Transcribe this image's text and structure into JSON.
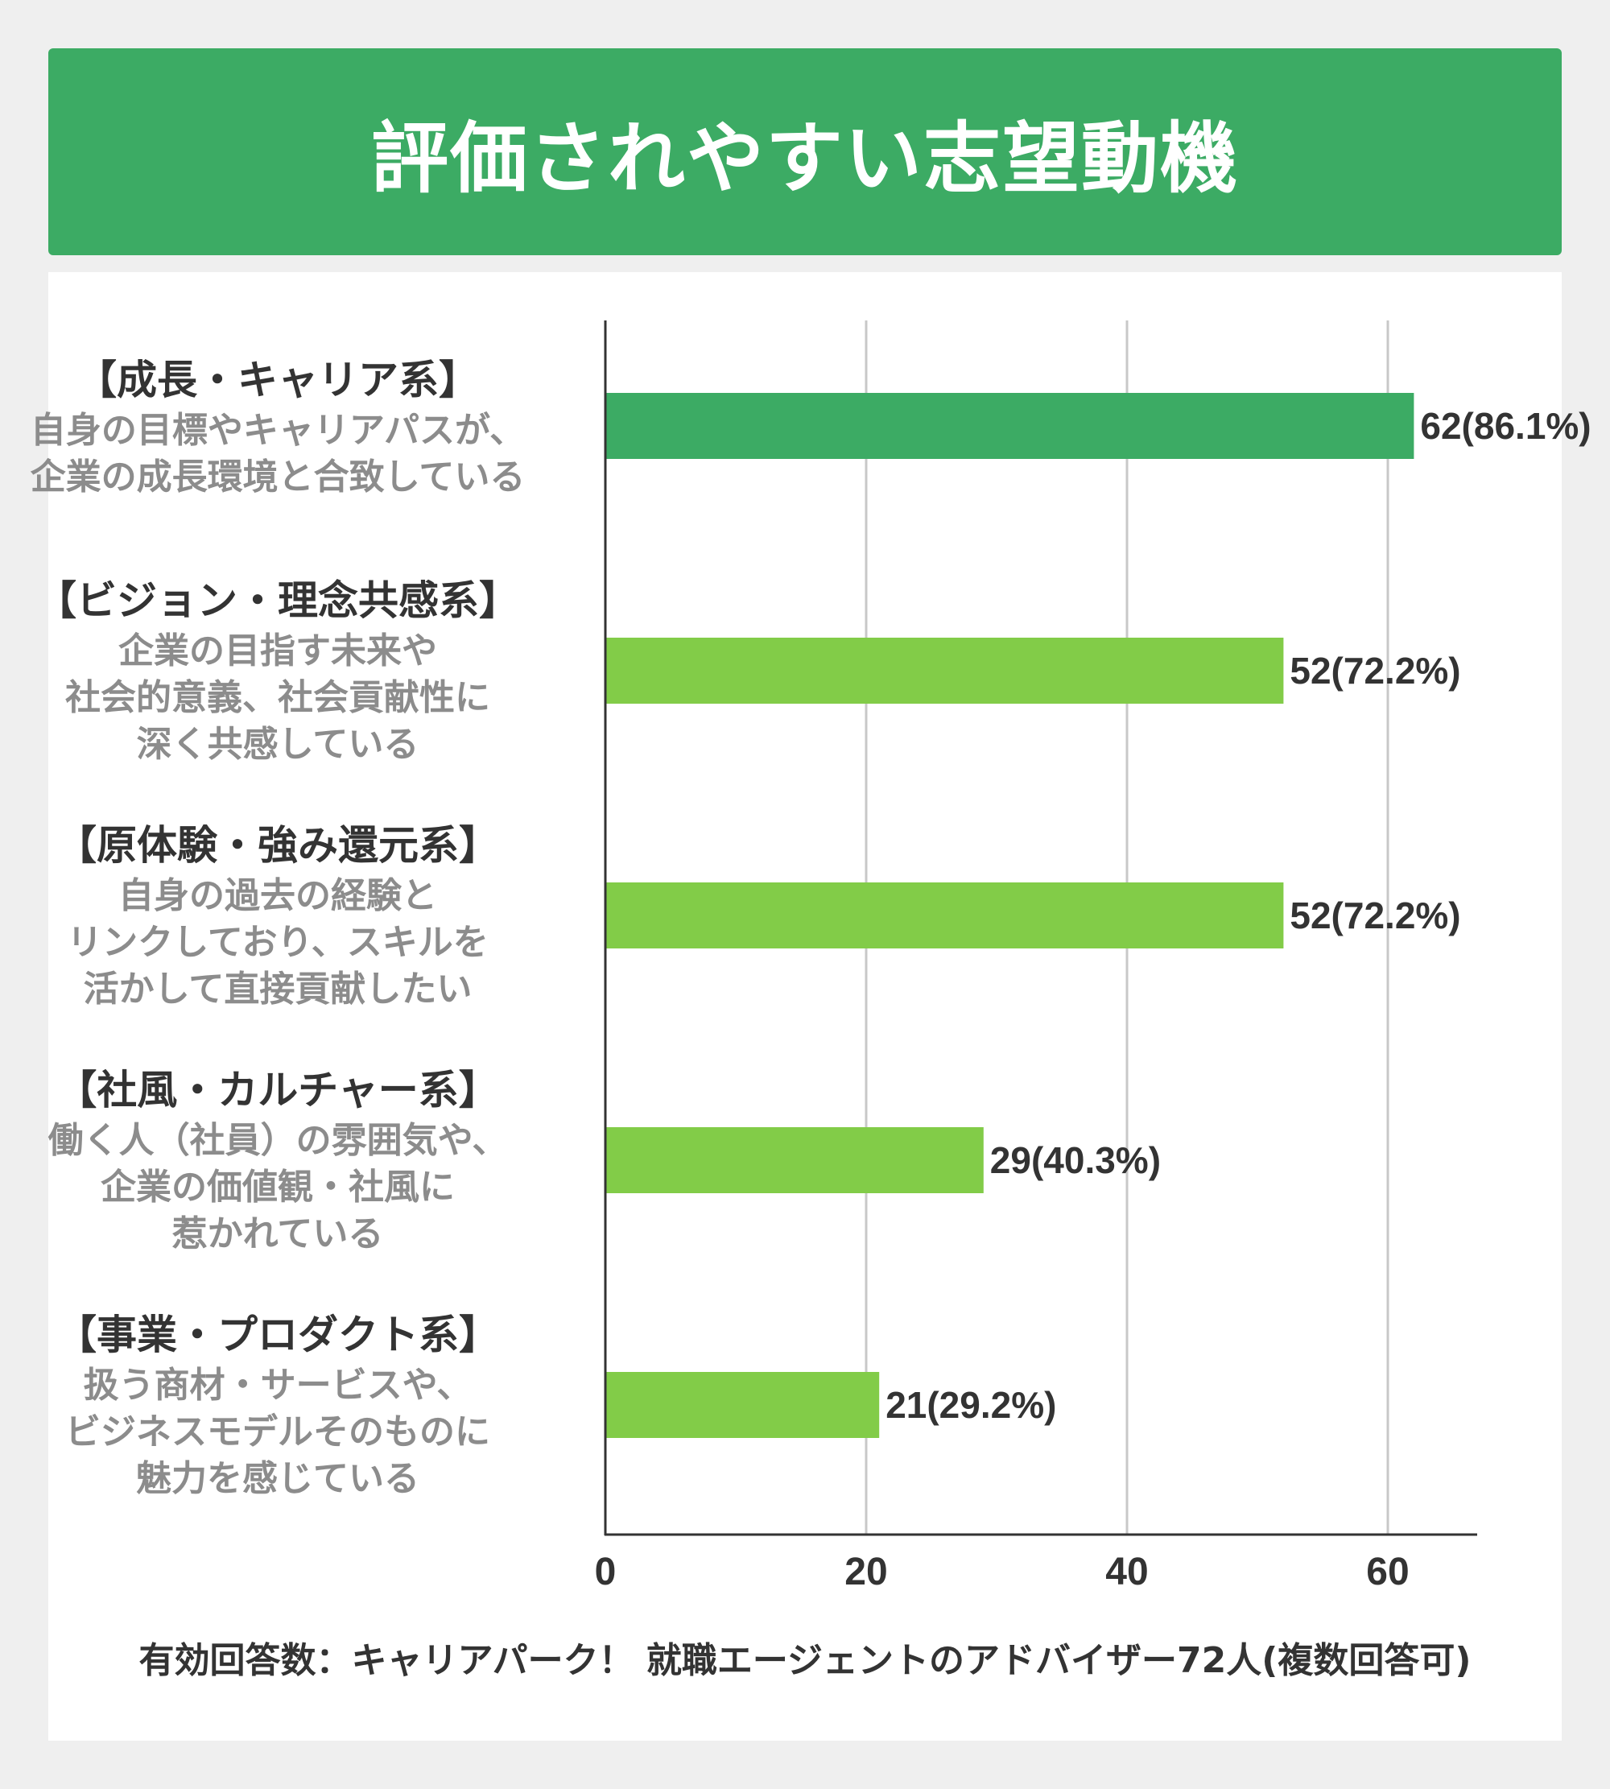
{
  "title": "評価されやすい志望動機",
  "footnote": "有効回答数：キャリアパーク！ 就職エージェントのアドバイザー72人(複数回答可)",
  "categories": [
    {
      "title": "【成長・キャリア系】",
      "desc": "自身の目標やキャリアパスが、\n企業の成長環境と合致している"
    },
    {
      "title": "【ビジョン・理念共感系】",
      "desc": "企業の目指す未来や\n社会的意義、社会貢献性に\n深く共感している"
    },
    {
      "title": "【原体験・強み還元系】",
      "desc": "自身の過去の経験と\nリンクしており、スキルを\n活かして直接貢献したい"
    },
    {
      "title": "【社風・カルチャー系】",
      "desc": "働く人（社員）の雰囲気や、\n企業の価値観・社風に\n惹かれている"
    },
    {
      "title": "【事業・プロダクト系】",
      "desc": "扱う商材・サービスや、\nビジネスモデルそのものに\n魅力を感じている"
    }
  ],
  "chart_data": {
    "type": "bar",
    "orientation": "horizontal",
    "categories": [
      "【成長・キャリア系】",
      "【ビジョン・理念共感系】",
      "【原体験・強み還元系】",
      "【社風・カルチャー系】",
      "【事業・プロダクト系】"
    ],
    "values": [
      62,
      52,
      52,
      29,
      21
    ],
    "data_labels": [
      "62(86.1%)",
      "52(72.2%)",
      "52(72.2%)",
      "29(40.3%)",
      "21(29.2%)"
    ],
    "xticks": [
      "0",
      "20",
      "40",
      "60"
    ],
    "xtick_values": [
      0,
      20,
      40,
      60
    ],
    "xlim": [
      0,
      67
    ],
    "grid": true,
    "colors": {
      "highlight": "#3cab64",
      "default": "#82cc48",
      "grid": "#c8c8c8",
      "axis": "#333333"
    }
  }
}
